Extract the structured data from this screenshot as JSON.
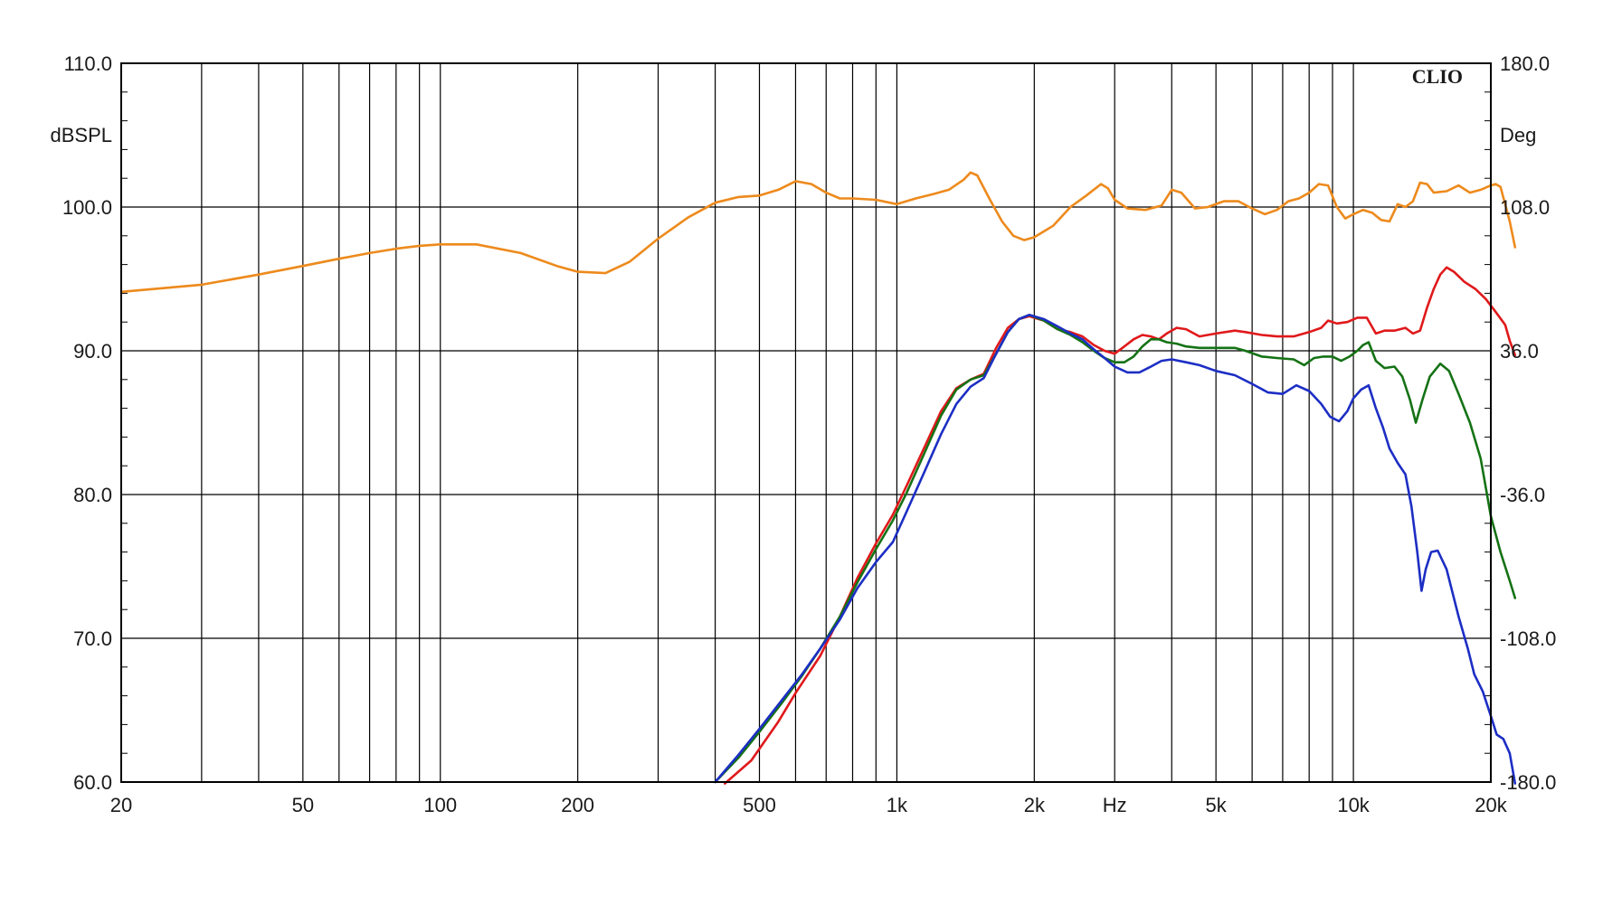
{
  "chart_data": {
    "type": "line",
    "brand": "CLIO",
    "xlabel": "Hz",
    "ylabel_left": "dBSPL",
    "ylabel_right": "Deg",
    "x_scale": "log",
    "xlim": [
      20,
      20000
    ],
    "ylim": [
      60,
      110
    ],
    "y2lim": [
      -180,
      180
    ],
    "grid": true,
    "x_ticks": [
      {
        "value": 20,
        "label": "20"
      },
      {
        "value": 50,
        "label": "50"
      },
      {
        "value": 100,
        "label": "100"
      },
      {
        "value": 200,
        "label": "200"
      },
      {
        "value": 500,
        "label": "500"
      },
      {
        "value": 1000,
        "label": "1k"
      },
      {
        "value": 2000,
        "label": "2k"
      },
      {
        "value": 3000,
        "label": "Hz"
      },
      {
        "value": 5000,
        "label": "5k"
      },
      {
        "value": 10000,
        "label": "10k"
      },
      {
        "value": 20000,
        "label": "20k"
      }
    ],
    "x_gridlines": [
      20,
      30,
      40,
      50,
      60,
      70,
      80,
      90,
      100,
      200,
      300,
      400,
      500,
      600,
      700,
      800,
      900,
      1000,
      2000,
      3000,
      4000,
      5000,
      6000,
      7000,
      8000,
      9000,
      10000,
      20000
    ],
    "y_ticks_left": [
      {
        "value": 60,
        "label": "60.0"
      },
      {
        "value": 70,
        "label": "70.0"
      },
      {
        "value": 80,
        "label": "80.0"
      },
      {
        "value": 90,
        "label": "90.0"
      },
      {
        "value": 100,
        "label": "100.0"
      },
      {
        "value": 110,
        "label": "110.0"
      }
    ],
    "y_ticks_right": [
      {
        "value": -180,
        "label": "-180.0"
      },
      {
        "value": -108,
        "label": "-108.0"
      },
      {
        "value": -36,
        "label": "-36.0"
      },
      {
        "value": 36,
        "label": "36.0"
      },
      {
        "value": 108,
        "label": "108.0"
      },
      {
        "value": 180,
        "label": "180.0"
      }
    ],
    "series": [
      {
        "color": "#ed8a1c",
        "points": [
          [
            20,
            94.1
          ],
          [
            30,
            94.6
          ],
          [
            40,
            95.3
          ],
          [
            50,
            95.9
          ],
          [
            60,
            96.4
          ],
          [
            70,
            96.8
          ],
          [
            80,
            97.1
          ],
          [
            90,
            97.3
          ],
          [
            100,
            97.4
          ],
          [
            120,
            97.4
          ],
          [
            150,
            96.8
          ],
          [
            180,
            95.9
          ],
          [
            200,
            95.5
          ],
          [
            230,
            95.4
          ],
          [
            260,
            96.2
          ],
          [
            300,
            97.8
          ],
          [
            350,
            99.3
          ],
          [
            400,
            100.3
          ],
          [
            450,
            100.7
          ],
          [
            500,
            100.8
          ],
          [
            550,
            101.2
          ],
          [
            600,
            101.8
          ],
          [
            650,
            101.6
          ],
          [
            700,
            101.0
          ],
          [
            750,
            100.6
          ],
          [
            800,
            100.6
          ],
          [
            900,
            100.5
          ],
          [
            1000,
            100.2
          ],
          [
            1100,
            100.6
          ],
          [
            1200,
            100.9
          ],
          [
            1300,
            101.2
          ],
          [
            1400,
            101.9
          ],
          [
            1450,
            102.4
          ],
          [
            1500,
            102.2
          ],
          [
            1600,
            100.5
          ],
          [
            1700,
            99.0
          ],
          [
            1800,
            98.0
          ],
          [
            1900,
            97.7
          ],
          [
            2000,
            97.9
          ],
          [
            2200,
            98.7
          ],
          [
            2400,
            100.0
          ],
          [
            2600,
            100.8
          ],
          [
            2800,
            101.6
          ],
          [
            2900,
            101.3
          ],
          [
            3000,
            100.5
          ],
          [
            3200,
            99.9
          ],
          [
            3500,
            99.8
          ],
          [
            3800,
            100.1
          ],
          [
            4000,
            101.2
          ],
          [
            4200,
            101.0
          ],
          [
            4500,
            99.9
          ],
          [
            4800,
            100.0
          ],
          [
            5200,
            100.4
          ],
          [
            5600,
            100.4
          ],
          [
            6000,
            99.9
          ],
          [
            6400,
            99.5
          ],
          [
            6800,
            99.8
          ],
          [
            7200,
            100.4
          ],
          [
            7600,
            100.6
          ],
          [
            8000,
            101.0
          ],
          [
            8400,
            101.6
          ],
          [
            8800,
            101.5
          ],
          [
            9200,
            100.0
          ],
          [
            9600,
            99.2
          ],
          [
            10000,
            99.5
          ],
          [
            10500,
            99.8
          ],
          [
            11000,
            99.6
          ],
          [
            11500,
            99.1
          ],
          [
            12000,
            99.0
          ],
          [
            12500,
            100.2
          ],
          [
            13000,
            100.0
          ],
          [
            13500,
            100.4
          ],
          [
            14000,
            101.7
          ],
          [
            14500,
            101.6
          ],
          [
            15000,
            101.0
          ],
          [
            16000,
            101.1
          ],
          [
            17000,
            101.5
          ],
          [
            18000,
            101.0
          ],
          [
            19000,
            101.2
          ],
          [
            20000,
            101.5
          ],
          [
            20500,
            101.6
          ],
          [
            21000,
            101.4
          ],
          [
            22000,
            99.0
          ],
          [
            22600,
            97.2
          ]
        ]
      },
      {
        "color": "#e0191b",
        "points": [
          [
            420,
            59.9
          ],
          [
            480,
            61.5
          ],
          [
            550,
            64.2
          ],
          [
            600,
            66.2
          ],
          [
            680,
            68.8
          ],
          [
            750,
            71.5
          ],
          [
            820,
            74.2
          ],
          [
            900,
            76.6
          ],
          [
            980,
            78.6
          ],
          [
            1050,
            80.6
          ],
          [
            1150,
            83.3
          ],
          [
            1250,
            85.8
          ],
          [
            1350,
            87.4
          ],
          [
            1450,
            88.0
          ],
          [
            1550,
            88.4
          ],
          [
            1650,
            90.2
          ],
          [
            1750,
            91.6
          ],
          [
            1850,
            92.2
          ],
          [
            1950,
            92.4
          ],
          [
            2100,
            92.1
          ],
          [
            2250,
            91.5
          ],
          [
            2400,
            91.3
          ],
          [
            2550,
            91.0
          ],
          [
            2700,
            90.4
          ],
          [
            2850,
            90.0
          ],
          [
            3000,
            89.8
          ],
          [
            3150,
            90.3
          ],
          [
            3300,
            90.8
          ],
          [
            3450,
            91.1
          ],
          [
            3600,
            91.0
          ],
          [
            3750,
            90.8
          ],
          [
            3900,
            91.2
          ],
          [
            4100,
            91.6
          ],
          [
            4300,
            91.5
          ],
          [
            4600,
            91.0
          ],
          [
            5000,
            91.2
          ],
          [
            5500,
            91.4
          ],
          [
            5800,
            91.3
          ],
          [
            6300,
            91.1
          ],
          [
            6800,
            91.0
          ],
          [
            7400,
            91.0
          ],
          [
            8000,
            91.3
          ],
          [
            8500,
            91.6
          ],
          [
            8800,
            92.1
          ],
          [
            9200,
            91.9
          ],
          [
            9700,
            92.0
          ],
          [
            10200,
            92.3
          ],
          [
            10700,
            92.3
          ],
          [
            11200,
            91.2
          ],
          [
            11700,
            91.4
          ],
          [
            12300,
            91.4
          ],
          [
            13000,
            91.6
          ],
          [
            13500,
            91.2
          ],
          [
            14000,
            91.4
          ],
          [
            14500,
            93.0
          ],
          [
            15000,
            94.3
          ],
          [
            15500,
            95.3
          ],
          [
            16000,
            95.8
          ],
          [
            16600,
            95.5
          ],
          [
            17500,
            94.8
          ],
          [
            18500,
            94.3
          ],
          [
            19500,
            93.6
          ],
          [
            20500,
            92.7
          ],
          [
            21500,
            91.8
          ],
          [
            22000,
            90.7
          ],
          [
            22600,
            89.7
          ]
        ]
      },
      {
        "color": "#157215",
        "points": [
          [
            400,
            60.0
          ],
          [
            450,
            61.7
          ],
          [
            500,
            63.5
          ],
          [
            560,
            65.5
          ],
          [
            620,
            67.4
          ],
          [
            680,
            69.3
          ],
          [
            750,
            71.5
          ],
          [
            820,
            73.9
          ],
          [
            900,
            76.2
          ],
          [
            980,
            78.2
          ],
          [
            1050,
            80.1
          ],
          [
            1150,
            82.9
          ],
          [
            1250,
            85.5
          ],
          [
            1350,
            87.3
          ],
          [
            1450,
            88.0
          ],
          [
            1550,
            88.3
          ],
          [
            1650,
            89.8
          ],
          [
            1750,
            91.3
          ],
          [
            1850,
            92.2
          ],
          [
            1950,
            92.5
          ],
          [
            2100,
            92.1
          ],
          [
            2250,
            91.5
          ],
          [
            2400,
            91.1
          ],
          [
            2550,
            90.6
          ],
          [
            2700,
            90.0
          ],
          [
            2850,
            89.5
          ],
          [
            3000,
            89.2
          ],
          [
            3150,
            89.2
          ],
          [
            3300,
            89.6
          ],
          [
            3450,
            90.3
          ],
          [
            3600,
            90.8
          ],
          [
            3750,
            90.8
          ],
          [
            3900,
            90.6
          ],
          [
            4100,
            90.5
          ],
          [
            4300,
            90.3
          ],
          [
            4600,
            90.2
          ],
          [
            5000,
            90.2
          ],
          [
            5500,
            90.2
          ],
          [
            5800,
            90.0
          ],
          [
            6300,
            89.6
          ],
          [
            6800,
            89.5
          ],
          [
            7400,
            89.4
          ],
          [
            7800,
            89.0
          ],
          [
            8200,
            89.5
          ],
          [
            8600,
            89.6
          ],
          [
            9000,
            89.6
          ],
          [
            9400,
            89.3
          ],
          [
            9800,
            89.6
          ],
          [
            10200,
            90.0
          ],
          [
            10500,
            90.4
          ],
          [
            10800,
            90.6
          ],
          [
            11200,
            89.3
          ],
          [
            11700,
            88.8
          ],
          [
            12300,
            88.9
          ],
          [
            12800,
            88.2
          ],
          [
            13300,
            86.6
          ],
          [
            13700,
            85.0
          ],
          [
            14200,
            86.7
          ],
          [
            14700,
            88.2
          ],
          [
            15500,
            89.1
          ],
          [
            16200,
            88.6
          ],
          [
            17000,
            87.0
          ],
          [
            18000,
            85.0
          ],
          [
            19000,
            82.5
          ],
          [
            20000,
            78.5
          ],
          [
            21000,
            76.0
          ],
          [
            22000,
            74.0
          ],
          [
            22600,
            72.8
          ]
        ]
      },
      {
        "color": "#1c2ec4",
        "points": [
          [
            400,
            60.0
          ],
          [
            450,
            61.9
          ],
          [
            500,
            63.7
          ],
          [
            560,
            65.7
          ],
          [
            620,
            67.5
          ],
          [
            680,
            69.3
          ],
          [
            750,
            71.3
          ],
          [
            820,
            73.5
          ],
          [
            900,
            75.3
          ],
          [
            980,
            76.7
          ],
          [
            1050,
            78.8
          ],
          [
            1150,
            81.6
          ],
          [
            1250,
            84.2
          ],
          [
            1350,
            86.3
          ],
          [
            1450,
            87.5
          ],
          [
            1550,
            88.1
          ],
          [
            1650,
            89.8
          ],
          [
            1750,
            91.3
          ],
          [
            1850,
            92.2
          ],
          [
            1950,
            92.5
          ],
          [
            2100,
            92.2
          ],
          [
            2250,
            91.7
          ],
          [
            2400,
            91.2
          ],
          [
            2550,
            90.8
          ],
          [
            2700,
            90.1
          ],
          [
            2850,
            89.5
          ],
          [
            3000,
            88.9
          ],
          [
            3200,
            88.5
          ],
          [
            3400,
            88.5
          ],
          [
            3600,
            88.9
          ],
          [
            3800,
            89.3
          ],
          [
            4000,
            89.4
          ],
          [
            4300,
            89.2
          ],
          [
            4600,
            89.0
          ],
          [
            5000,
            88.6
          ],
          [
            5500,
            88.3
          ],
          [
            6000,
            87.7
          ],
          [
            6500,
            87.1
          ],
          [
            7000,
            87.0
          ],
          [
            7500,
            87.6
          ],
          [
            8000,
            87.2
          ],
          [
            8500,
            86.3
          ],
          [
            8900,
            85.4
          ],
          [
            9300,
            85.1
          ],
          [
            9700,
            85.8
          ],
          [
            10000,
            86.7
          ],
          [
            10400,
            87.3
          ],
          [
            10800,
            87.6
          ],
          [
            11200,
            86.0
          ],
          [
            11600,
            84.7
          ],
          [
            12000,
            83.2
          ],
          [
            12500,
            82.2
          ],
          [
            13000,
            81.4
          ],
          [
            13400,
            79.2
          ],
          [
            13800,
            76.0
          ],
          [
            14100,
            73.3
          ],
          [
            14400,
            74.8
          ],
          [
            14800,
            76.0
          ],
          [
            15300,
            76.1
          ],
          [
            16000,
            74.8
          ],
          [
            17000,
            71.5
          ],
          [
            17800,
            69.3
          ],
          [
            18400,
            67.5
          ],
          [
            19200,
            66.3
          ],
          [
            20000,
            64.6
          ],
          [
            20600,
            63.3
          ],
          [
            21300,
            63.0
          ],
          [
            22000,
            62.0
          ],
          [
            22600,
            59.9
          ]
        ]
      }
    ]
  }
}
